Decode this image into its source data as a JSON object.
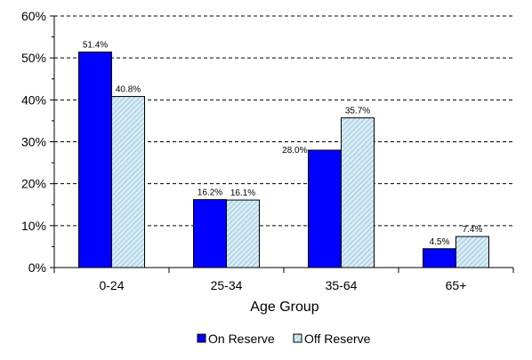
{
  "chart_data": {
    "type": "bar",
    "title": "",
    "xlabel": "Age Group",
    "ylabel": "",
    "categories": [
      "0-24",
      "25-34",
      "35-64",
      "65+"
    ],
    "ylim": [
      0,
      60
    ],
    "yticks": [
      0,
      10,
      20,
      30,
      40,
      50,
      60
    ],
    "ytick_labels": [
      "0%",
      "10%",
      "20%",
      "30%",
      "40%",
      "50%",
      "60%"
    ],
    "grid": "horizontal dashed",
    "legend_position": "bottom",
    "series": [
      {
        "name": "On Reserve",
        "values": [
          51.4,
          16.2,
          28.0,
          4.5
        ],
        "labels": [
          "51.4%",
          "16.2%",
          "28.0%",
          "4.5%"
        ],
        "color": "#0000ff",
        "pattern": "solid"
      },
      {
        "name": "Off Reserve",
        "values": [
          40.8,
          16.1,
          35.7,
          7.4
        ],
        "labels": [
          "40.8%",
          "16.1%",
          "35.7%",
          "7.4%"
        ],
        "color": "#cfe6f2",
        "pattern": "hatched"
      }
    ]
  }
}
